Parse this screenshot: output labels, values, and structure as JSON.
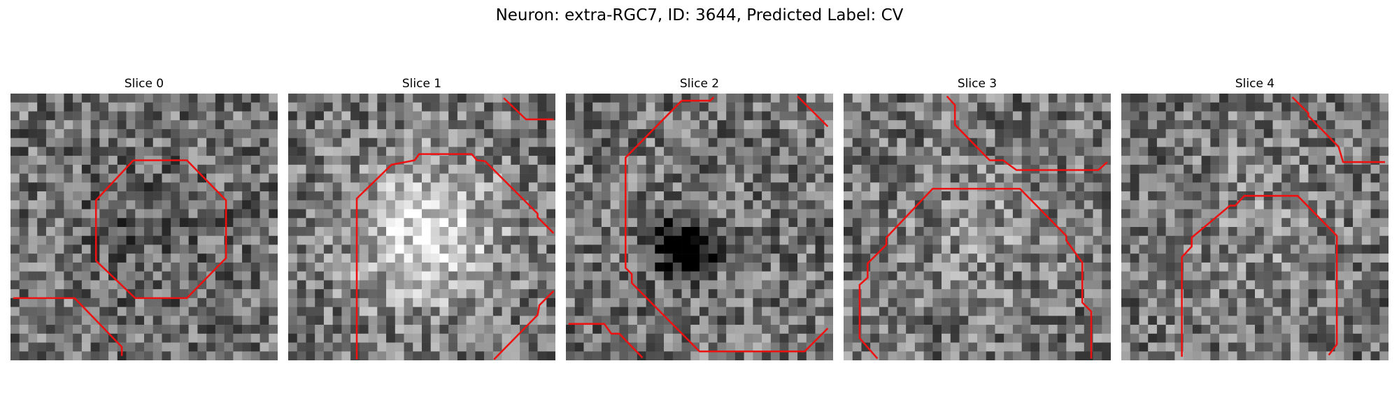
{
  "figure": {
    "title": "Neuron: extra-RGC7, ID: 3644, Predicted Label: CV"
  },
  "panels": [
    {
      "title": "Slice 0",
      "seed": 11,
      "dark_center": false,
      "bright_center": 0.35
    },
    {
      "title": "Slice 1",
      "seed": 23,
      "dark_center": false,
      "bright_center": 0.85
    },
    {
      "title": "Slice 2",
      "seed": 37,
      "dark_center": true,
      "bright_center": 0.45
    },
    {
      "title": "Slice 3",
      "seed": 41,
      "dark_center": false,
      "bright_center": 0.55
    },
    {
      "title": "Slice 4",
      "seed": 53,
      "dark_center": false,
      "bright_center": 0.55
    }
  ],
  "style": {
    "contour_color": "#ee1111",
    "colormap": "gray"
  }
}
